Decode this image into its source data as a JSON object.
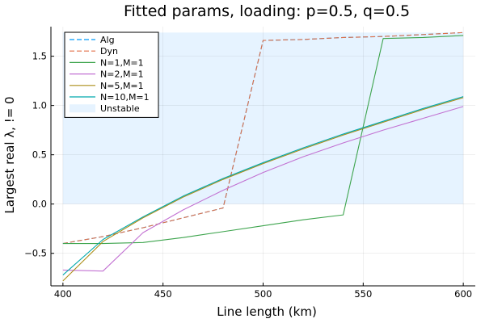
{
  "chart_data": {
    "type": "line",
    "title": "Fitted params, loading: p=0.5, q=0.5",
    "xlabel": "Line length (km)",
    "ylabel": "Largest real λ, != 0",
    "xlim": [
      394,
      606
    ],
    "ylim": [
      -0.83,
      1.8
    ],
    "xticks": [
      400,
      450,
      500,
      550,
      600
    ],
    "yticks": [
      -0.5,
      0.0,
      0.5,
      1.0,
      1.5
    ],
    "xtick_labels": [
      "400",
      "450",
      "500",
      "550",
      "600"
    ],
    "ytick_labels": [
      "−0.5",
      "0.0",
      "0.5",
      "1.0",
      "1.5"
    ],
    "grid": true,
    "legend_position": "top-left",
    "unstable_region": {
      "label": "Unstable",
      "x": [
        400,
        600
      ],
      "y": [
        0,
        1.74
      ],
      "color": "#e6f3ff"
    },
    "series": [
      {
        "name": "Alg",
        "color": "#009af9",
        "dash": "dashed",
        "x": [
          400,
          420,
          440,
          460,
          480,
          500,
          520,
          540,
          560,
          580,
          600
        ],
        "y": [
          -0.4,
          -0.33,
          -0.24,
          -0.14,
          -0.04,
          1.66,
          1.67,
          1.69,
          1.7,
          1.72,
          1.74
        ]
      },
      {
        "name": "Dyn",
        "color": "#e26f46",
        "dash": "dashed",
        "x": [
          400,
          420,
          440,
          460,
          480,
          500,
          520,
          540,
          560,
          580,
          600
        ],
        "y": [
          -0.4,
          -0.33,
          -0.24,
          -0.14,
          -0.04,
          1.66,
          1.67,
          1.69,
          1.7,
          1.72,
          1.74
        ]
      },
      {
        "name": "N=1,M=1",
        "color": "#3da44d",
        "dash": "solid",
        "x": [
          400,
          420,
          440,
          460,
          480,
          500,
          520,
          540,
          560,
          580,
          600
        ],
        "y": [
          -0.4,
          -0.4,
          -0.39,
          -0.34,
          -0.28,
          -0.22,
          -0.16,
          -0.11,
          1.68,
          1.69,
          1.71
        ]
      },
      {
        "name": "N=2,M=1",
        "color": "#c271d2",
        "dash": "solid",
        "x": [
          400,
          420,
          440,
          460,
          480,
          500,
          520,
          540,
          560,
          580,
          600
        ],
        "y": [
          -0.67,
          -0.68,
          -0.29,
          -0.06,
          0.14,
          0.32,
          0.48,
          0.62,
          0.75,
          0.87,
          0.99
        ]
      },
      {
        "name": "N=5,M=1",
        "color": "#ac8d18",
        "dash": "solid",
        "x": [
          400,
          420,
          440,
          460,
          480,
          500,
          520,
          540,
          560,
          580,
          600
        ],
        "y": [
          -0.78,
          -0.38,
          -0.14,
          0.07,
          0.25,
          0.41,
          0.56,
          0.7,
          0.83,
          0.96,
          1.08
        ]
      },
      {
        "name": "N=10,M=1",
        "color": "#00a9ad",
        "dash": "solid",
        "x": [
          400,
          420,
          440,
          460,
          480,
          500,
          520,
          540,
          560,
          580,
          600
        ],
        "y": [
          -0.72,
          -0.36,
          -0.13,
          0.08,
          0.26,
          0.42,
          0.57,
          0.71,
          0.84,
          0.97,
          1.09
        ]
      }
    ]
  }
}
